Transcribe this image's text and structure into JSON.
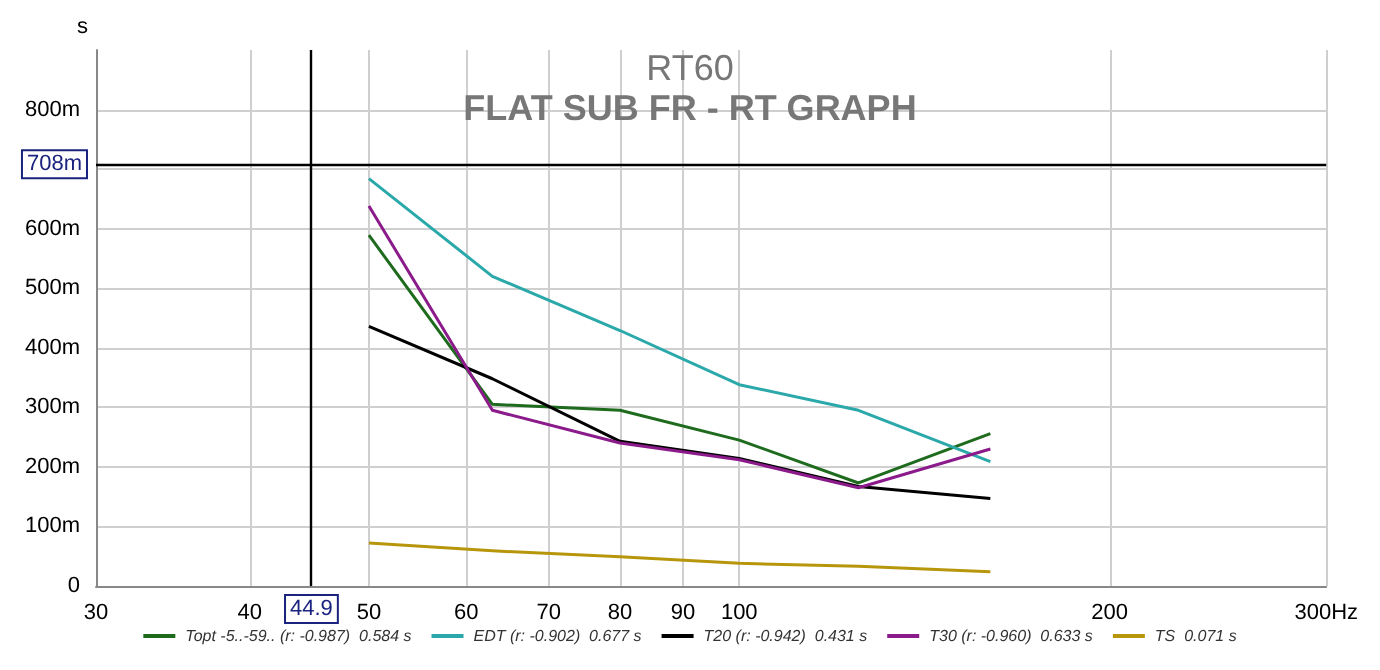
{
  "chart_data": {
    "type": "line",
    "title": "RT60",
    "subtitle": "FLAT SUB FR - RT GRAPH",
    "ylabel": "s",
    "x": [
      50,
      63,
      80,
      100,
      125,
      160
    ],
    "series": [
      {
        "name": "Topt -5..-59.. (r: -0.987)  0.584 s",
        "color": "#1e6b1e",
        "values": [
          589,
          305,
          295,
          245,
          173,
          256
        ]
      },
      {
        "name": "EDT (r: -0.902)  0.677 s",
        "color": "#2aa8aa",
        "values": [
          684,
          520,
          429,
          338,
          295,
          209
        ]
      },
      {
        "name": "T20 (r: -0.942)  0.431 s",
        "color": "#000000",
        "values": [
          436,
          348,
          243,
          214,
          167,
          147
        ]
      },
      {
        "name": "T30 (r: -0.960)  0.633 s",
        "color": "#8b1a8b",
        "values": [
          638,
          295,
          240,
          212,
          165,
          230
        ]
      },
      {
        "name": "TS  0.071 s",
        "color": "#b8960c",
        "values": [
          72,
          59,
          49,
          38,
          33,
          24
        ]
      }
    ],
    "log": "x",
    "xlim": [
      30,
      300
    ],
    "xticks": [
      30,
      40,
      50,
      60,
      70,
      80,
      90,
      100,
      200,
      {
        "value": 300,
        "label": "300Hz"
      }
    ],
    "ylim": [
      0,
      900
    ],
    "yticks": [
      0,
      {
        "value": 100,
        "label": "100m"
      },
      {
        "value": 200,
        "label": "200m"
      },
      {
        "value": 300,
        "label": "300m"
      },
      {
        "value": 400,
        "label": "400m"
      },
      {
        "value": 500,
        "label": "500m"
      },
      {
        "value": 600,
        "label": "600m"
      },
      {
        "value": 700,
        "label": null
      },
      {
        "value": 800,
        "label": "800m"
      }
    ],
    "ref_lines": [
      {
        "axis": "x",
        "value": 44.9,
        "label": "44.9",
        "color": "#000000"
      },
      {
        "axis": "y",
        "value": 708,
        "label": "708m",
        "color": "#000000"
      }
    ],
    "grid": true,
    "legend": "bottom",
    "marker": "none",
    "line_style": "solid"
  }
}
